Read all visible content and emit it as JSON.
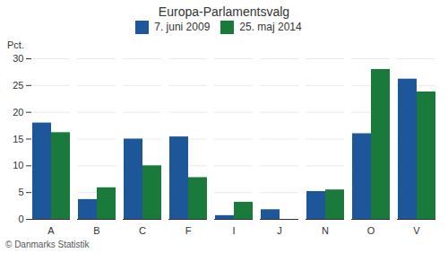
{
  "chart_data": {
    "type": "bar",
    "title": "Europa-Parlamentsvalg",
    "categories": [
      "A",
      "B",
      "C",
      "F",
      "I",
      "J",
      "N",
      "O",
      "V"
    ],
    "series": [
      {
        "name": "7. juni 2009",
        "color": "#1e5799",
        "values": [
          18.0,
          3.7,
          15.0,
          15.4,
          0.7,
          1.8,
          5.2,
          16.0,
          26.2
        ]
      },
      {
        "name": "25. maj 2014",
        "color": "#1a7a3c",
        "values": [
          16.2,
          5.9,
          10.0,
          7.8,
          3.2,
          0.0,
          5.5,
          28.0,
          23.8
        ]
      }
    ],
    "ylabel": "Pct.",
    "ylim": [
      0,
      30
    ],
    "yticks": [
      0,
      5,
      10,
      15,
      20,
      25,
      30
    ],
    "grid": true,
    "legend": "top",
    "annotations": [
      "© Danmarks Statistik"
    ]
  }
}
